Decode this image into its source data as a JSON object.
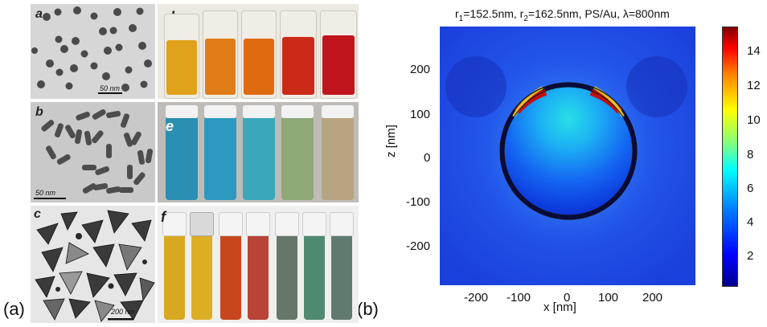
{
  "figure_labels": {
    "a_group": "(a)",
    "b_group": "(b)"
  },
  "panels": {
    "a": {
      "letter": "a",
      "scale": "50 nm"
    },
    "b": {
      "letter": "b",
      "scale": "50 nm"
    },
    "c": {
      "letter": "c",
      "scale": "200 nm"
    },
    "d": {
      "letter": "d",
      "liquid_colors": [
        "#e0a21a",
        "#e07d16",
        "#e06a10",
        "#cc2a18",
        "#c1151e"
      ]
    },
    "e": {
      "letter": "e",
      "liquid_colors": [
        "#2a8fb2",
        "#2e99c0",
        "#3aa8b8",
        "#8ea878",
        "#b8a480"
      ]
    },
    "f": {
      "letter": "f",
      "liquid_colors": [
        "#d8a820",
        "#dcae24",
        "#c8461e",
        "#b84438",
        "#66766a",
        "#4f8a70",
        "#617a70"
      ]
    }
  },
  "chart_data": {
    "type": "heatmap",
    "title_parts": {
      "r1": "r",
      "r1_sub": "1",
      "r1_val": "=152.5nm, ",
      "r2": "r",
      "r2_sub": "2",
      "r2_val": "=162.5nm, PS/Au, λ=800nm"
    },
    "xlabel": "x [nm]",
    "ylabel": "z [nm]",
    "xlim": [
      -300,
      300
    ],
    "ylim": [
      -300,
      300
    ],
    "xticks": [
      -200,
      -100,
      0,
      100,
      200
    ],
    "yticks": [
      200,
      100,
      0,
      -100,
      -200
    ],
    "colorbar": {
      "min": 0,
      "max": 15,
      "ticks": [
        14,
        12,
        10,
        8,
        6,
        4,
        2
      ]
    },
    "colormap": "jet",
    "structure": {
      "core_radius_nm": 152.5,
      "shell_radius_nm": 162.5,
      "center_z_nm": 25
    }
  }
}
